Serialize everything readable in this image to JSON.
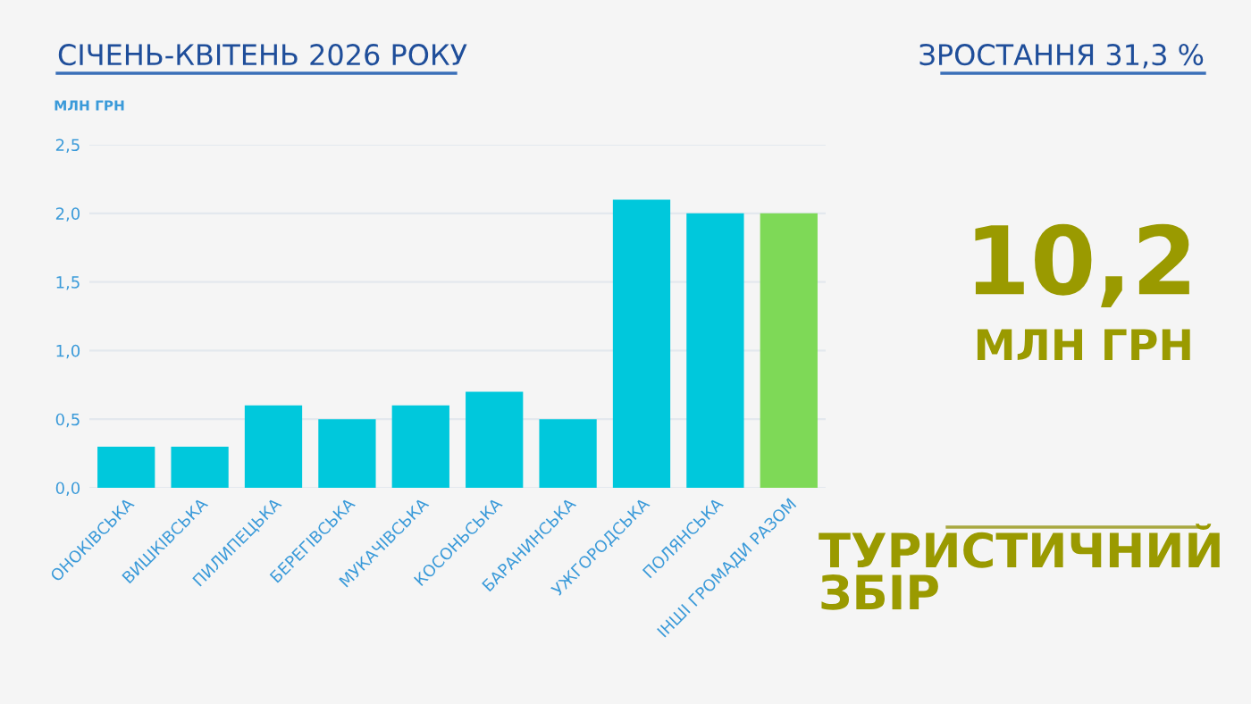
{
  "chart_data": {
    "type": "bar",
    "title": "СІЧЕНЬ-КВІТЕНЬ 2026 РОКУ",
    "ylabel": "МЛН ГРН",
    "categories": [
      "ОНОКІВСЬКА",
      "ВИШКІВСЬКА",
      "ПИЛИПЕЦЬКА",
      "БЕРЕГІВСЬКА",
      "МУКАЧІВСЬКА",
      "КОСОНЬСЬКА",
      "БАРАНИНСЬКА",
      "УЖГОРОДСЬКА",
      "ПОЛЯНСЬКА",
      "ІНШІ ГРОМАДИ РАЗОМ"
    ],
    "values": [
      0.3,
      0.3,
      0.6,
      0.5,
      0.6,
      0.7,
      0.5,
      2.1,
      2.0,
      2.0
    ],
    "colors": [
      "#00c8dc",
      "#00c8dc",
      "#00c8dc",
      "#00c8dc",
      "#00c8dc",
      "#00c8dc",
      "#00c8dc",
      "#00c8dc",
      "#00c8dc",
      "#7ed957"
    ],
    "ylim": [
      0,
      2.5
    ],
    "yticks": [
      {
        "value": 0,
        "label": "0,0"
      },
      {
        "value": 0.5,
        "label": "0,5"
      },
      {
        "value": 1,
        "label": "1,0"
      },
      {
        "value": 1.5,
        "label": "1,5"
      },
      {
        "value": 2,
        "label": "2,0"
      },
      {
        "value": 2.5,
        "label": "2,5"
      }
    ],
    "grid": "y",
    "annotations": [
      "ЗРОСТАННЯ 31,3 %",
      "10,2",
      "МЛН ГРН",
      "ТУРИСТИЧНИЙ\nЗБІР"
    ]
  }
}
